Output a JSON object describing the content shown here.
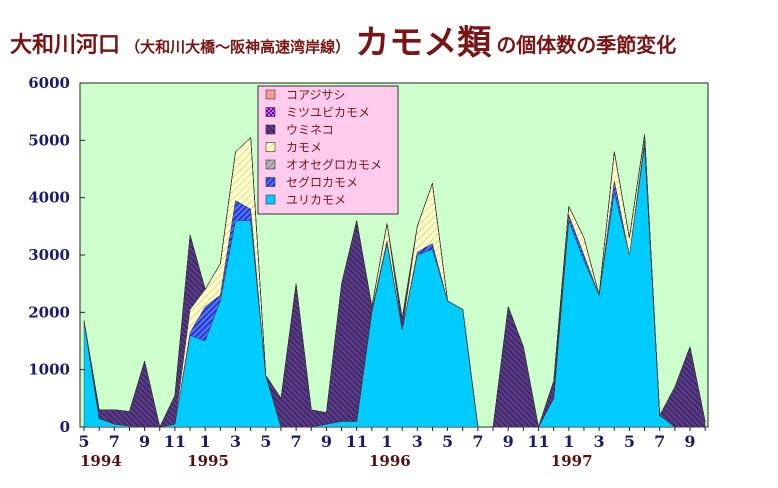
{
  "title": {
    "main": "大和川河口",
    "sub": "（大和川大橋～阪神高速湾岸線）",
    "emph": "カモメ類",
    "tail": "の個体数の季節変化"
  },
  "colors": {
    "plot_bg": "#ccffcc",
    "title": "#7a1414",
    "axis_text": "#1a1a6e",
    "year_text": "#5a0f0f",
    "legend_bg": "#ffccee"
  },
  "chart_data": {
    "type": "area",
    "stacked": true,
    "ylim": [
      0,
      6000
    ],
    "y_ticks": [
      "0",
      "1000",
      "2000",
      "3000",
      "4000",
      "5000",
      "6000"
    ],
    "x_tick_labels": [
      "5",
      "7",
      "9",
      "11",
      "1",
      "3",
      "5",
      "7",
      "9",
      "11",
      "1",
      "3",
      "5",
      "7",
      "9",
      "11",
      "1",
      "3",
      "5",
      "7",
      "9"
    ],
    "year_labels": [
      "1994",
      "1995",
      "1996",
      "1997"
    ],
    "x": [
      "1994-05",
      "1994-06",
      "1994-07",
      "1994-08",
      "1994-09",
      "1994-10",
      "1994-11",
      "1994-12",
      "1995-01",
      "1995-02",
      "1995-03",
      "1995-04",
      "1995-05",
      "1995-06",
      "1995-07",
      "1995-08",
      "1995-09",
      "1995-10",
      "1995-11",
      "1995-12",
      "1996-01",
      "1996-02",
      "1996-03",
      "1996-04",
      "1996-05",
      "1996-06",
      "1996-07",
      "1996-08",
      "1996-09",
      "1996-10",
      "1996-11",
      "1996-12",
      "1997-01",
      "1997-02",
      "1997-03",
      "1997-04",
      "1997-05",
      "1997-06",
      "1997-07",
      "1997-08",
      "1997-09",
      "1997-10"
    ],
    "legend_order": [
      "コアジサシ",
      "ミツユビカモメ",
      "ウミネコ",
      "カモメ",
      "オオセグロカモメ",
      "セグロカモメ",
      "ユリカモメ"
    ],
    "series": [
      {
        "name": "ユリカモメ",
        "color": "#00ccff",
        "values": [
          1850,
          150,
          50,
          20,
          0,
          0,
          50,
          1600,
          1500,
          2200,
          3600,
          3600,
          900,
          0,
          0,
          0,
          50,
          100,
          100,
          2000,
          3200,
          1700,
          3000,
          3100,
          2200,
          2050,
          0,
          0,
          0,
          0,
          0,
          500,
          3600,
          2900,
          2300,
          4100,
          3000,
          4900,
          200,
          0,
          0,
          0
        ]
      },
      {
        "name": "セグロカモメ",
        "color": "#0000cc",
        "values": [
          0,
          0,
          0,
          0,
          0,
          0,
          0,
          50,
          600,
          100,
          350,
          200,
          0,
          0,
          0,
          0,
          0,
          0,
          0,
          50,
          50,
          0,
          50,
          100,
          0,
          0,
          0,
          0,
          0,
          0,
          0,
          0,
          100,
          100,
          0,
          200,
          0,
          100,
          0,
          0,
          0,
          0
        ]
      },
      {
        "name": "オオセグロカモメ",
        "color": "#888888",
        "values": [
          0,
          0,
          0,
          0,
          0,
          0,
          0,
          0,
          0,
          0,
          0,
          0,
          0,
          0,
          0,
          0,
          0,
          0,
          0,
          0,
          0,
          0,
          0,
          0,
          0,
          0,
          0,
          0,
          0,
          0,
          0,
          0,
          0,
          0,
          0,
          0,
          0,
          0,
          0,
          0,
          0,
          0
        ]
      },
      {
        "name": "カモメ",
        "color": "#ffffcc",
        "values": [
          0,
          0,
          0,
          0,
          0,
          0,
          0,
          400,
          300,
          550,
          850,
          1250,
          0,
          0,
          0,
          0,
          0,
          0,
          0,
          50,
          300,
          0,
          450,
          1050,
          0,
          0,
          0,
          0,
          0,
          0,
          0,
          0,
          150,
          300,
          0,
          500,
          300,
          100,
          0,
          0,
          0,
          0
        ]
      },
      {
        "name": "ウミネコ",
        "color": "#4b2a6e",
        "values": [
          0,
          150,
          250,
          250,
          1150,
          0,
          500,
          1300,
          0,
          0,
          0,
          0,
          0,
          500,
          2500,
          300,
          200,
          2400,
          3500,
          0,
          0,
          200,
          0,
          0,
          0,
          0,
          0,
          0,
          2100,
          1400,
          0,
          300,
          0,
          0,
          0,
          0,
          0,
          0,
          0,
          700,
          1400,
          100
        ]
      },
      {
        "name": "ミツユビカモメ",
        "color": "#9900cc",
        "values": [
          0,
          0,
          0,
          0,
          0,
          0,
          0,
          0,
          0,
          0,
          0,
          0,
          0,
          0,
          0,
          0,
          0,
          0,
          0,
          0,
          0,
          0,
          0,
          0,
          0,
          0,
          0,
          0,
          0,
          0,
          0,
          0,
          0,
          0,
          0,
          0,
          0,
          0,
          0,
          0,
          0,
          0
        ]
      },
      {
        "name": "コアジサシ",
        "color": "#ff9999",
        "values": [
          0,
          0,
          0,
          0,
          0,
          0,
          0,
          0,
          0,
          0,
          0,
          0,
          0,
          0,
          0,
          0,
          0,
          0,
          0,
          0,
          0,
          0,
          0,
          0,
          0,
          0,
          0,
          0,
          0,
          0,
          0,
          0,
          0,
          0,
          0,
          0,
          0,
          0,
          0,
          0,
          0,
          0
        ]
      }
    ]
  }
}
